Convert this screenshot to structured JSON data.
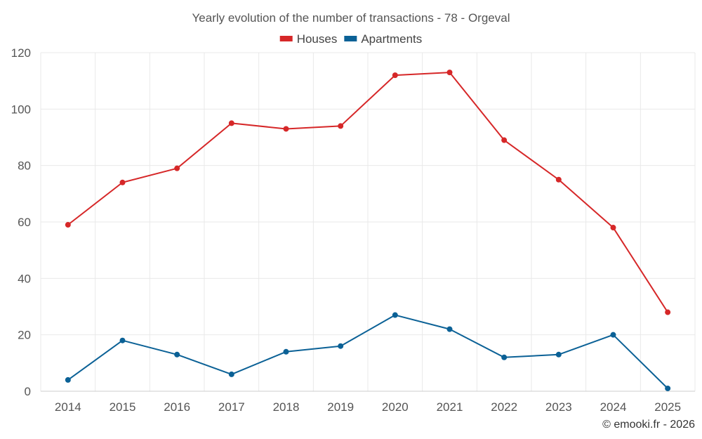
{
  "chart_data": {
    "type": "line",
    "title": "Yearly evolution of the number of transactions - 78 - Orgeval",
    "categories": [
      "2014",
      "2015",
      "2016",
      "2017",
      "2018",
      "2019",
      "2020",
      "2021",
      "2022",
      "2023",
      "2024",
      "2025"
    ],
    "series": [
      {
        "name": "Houses",
        "color": "#d62728",
        "values": [
          59,
          74,
          79,
          95,
          93,
          94,
          112,
          113,
          89,
          75,
          58,
          28
        ]
      },
      {
        "name": "Apartments",
        "color": "#0b6196",
        "values": [
          4,
          18,
          13,
          6,
          14,
          16,
          27,
          22,
          12,
          13,
          20,
          1
        ]
      }
    ],
    "ylim": [
      0,
      120
    ],
    "yticks": [
      0,
      20,
      40,
      60,
      80,
      100,
      120
    ],
    "grid": true,
    "legend_position": "top-center",
    "xlabel": "",
    "ylabel": ""
  },
  "credit": "© emooki.fr - 2026"
}
